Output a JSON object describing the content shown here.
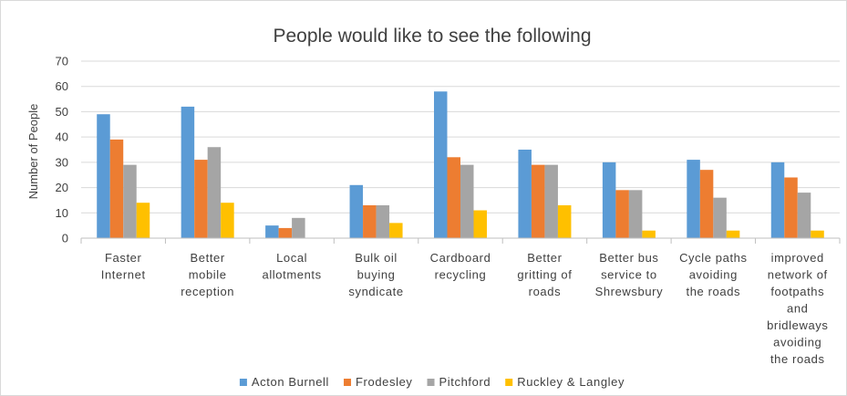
{
  "chart_data": {
    "type": "bar",
    "title": "People would like to see the following",
    "ylabel": "Number of People",
    "xlabel": "",
    "ylim": [
      0,
      70
    ],
    "yticks": [
      0,
      10,
      20,
      30,
      40,
      50,
      60,
      70
    ],
    "grid": true,
    "legend_position": "bottom",
    "categories": [
      [
        "Faster",
        "Internet"
      ],
      [
        "Better",
        "mobile",
        "reception"
      ],
      [
        "Local",
        "allotments"
      ],
      [
        "Bulk oil",
        "buying",
        "syndicate"
      ],
      [
        "Cardboard",
        "recycling"
      ],
      [
        "Better",
        "gritting of",
        "roads"
      ],
      [
        "Better bus",
        "service to",
        "Shrewsbury"
      ],
      [
        "Cycle paths",
        "avoiding",
        "the roads"
      ],
      [
        "improved",
        "network of",
        "footpaths",
        "and",
        "bridleways",
        "avoiding",
        "the roads"
      ]
    ],
    "series": [
      {
        "name": "Acton Burnell",
        "color": "#5b9bd5",
        "values": [
          49,
          52,
          5,
          21,
          58,
          35,
          30,
          31,
          30
        ]
      },
      {
        "name": "Frodesley",
        "color": "#ed7d31",
        "values": [
          39,
          31,
          4,
          13,
          32,
          29,
          19,
          27,
          24
        ]
      },
      {
        "name": "Pitchford",
        "color": "#a5a5a5",
        "values": [
          29,
          36,
          8,
          13,
          29,
          29,
          19,
          16,
          18
        ]
      },
      {
        "name": "Ruckley & Langley",
        "color": "#ffc000",
        "values": [
          14,
          14,
          0,
          6,
          11,
          13,
          3,
          3,
          3
        ]
      }
    ]
  }
}
